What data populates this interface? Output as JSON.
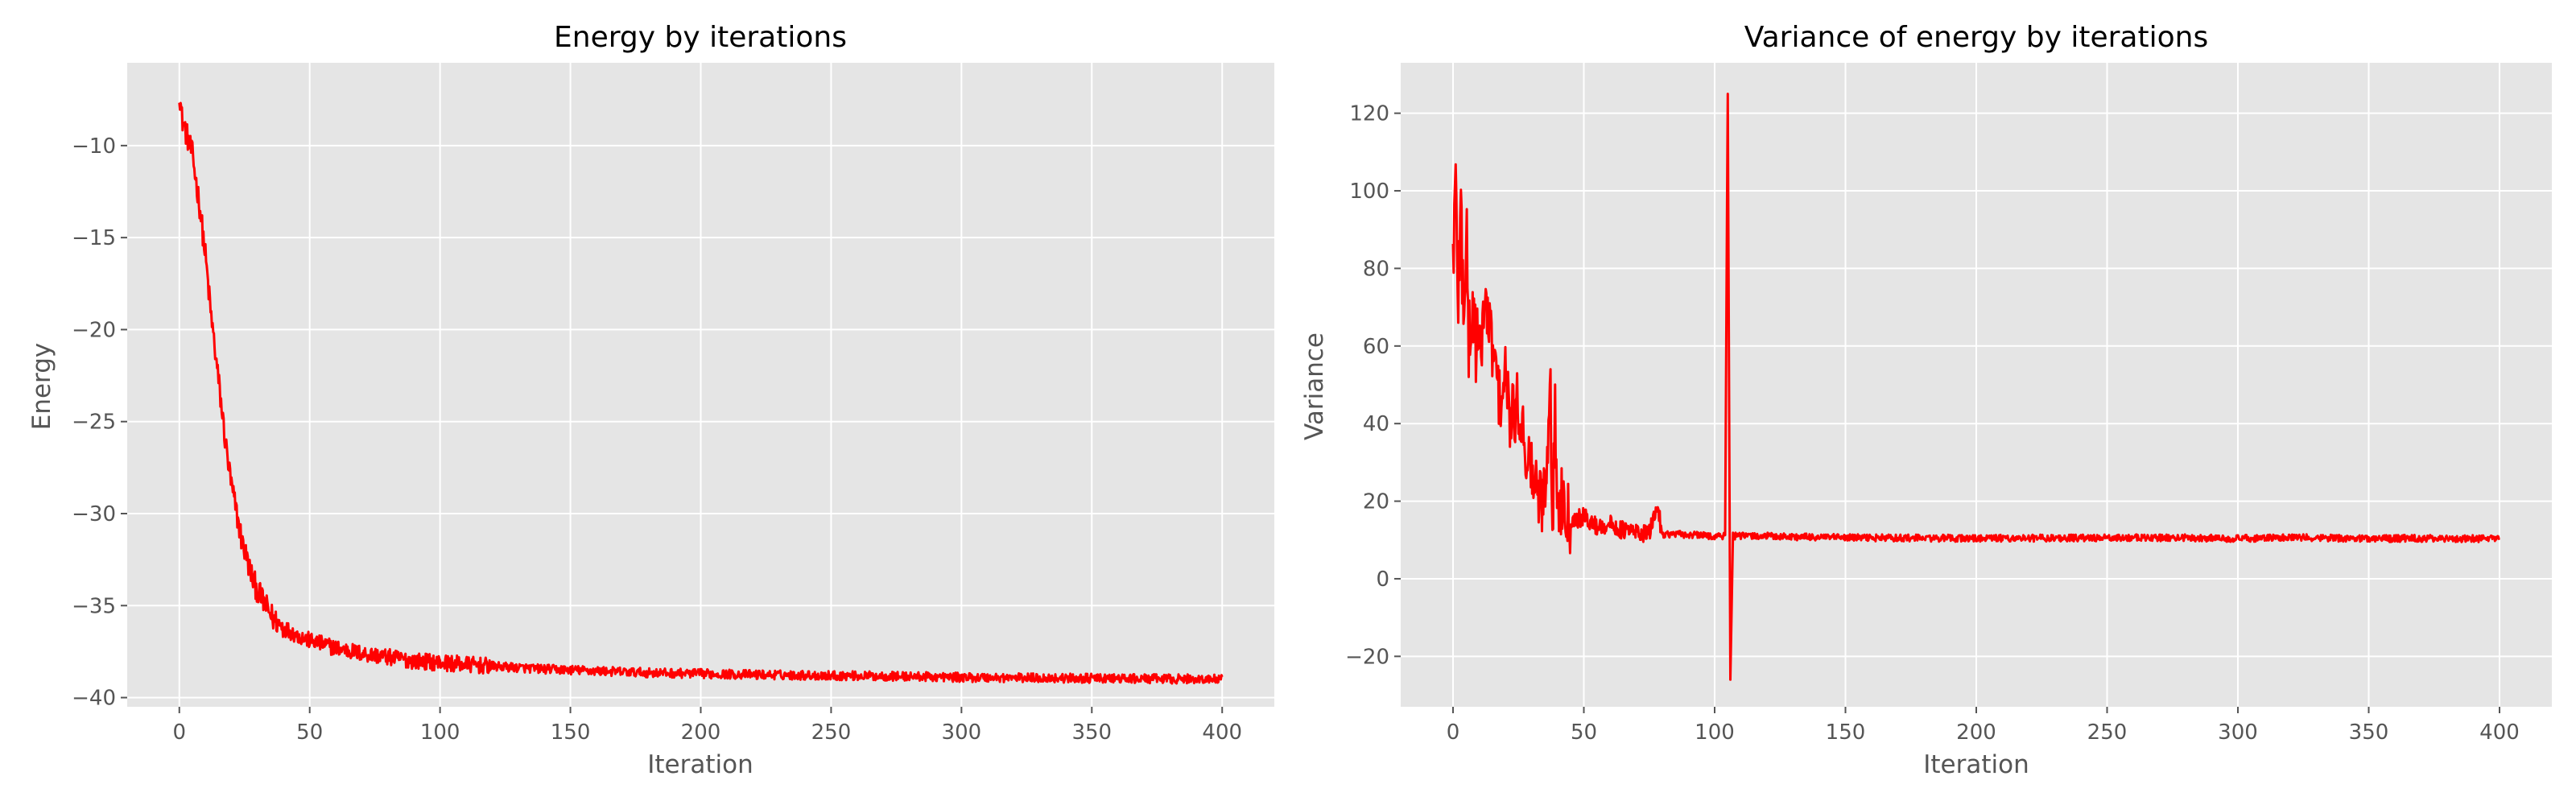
{
  "chart_data": [
    {
      "type": "line",
      "title": "Energy by iterations",
      "xlabel": "Iteration",
      "ylabel": "Energy",
      "xlim": [
        -20,
        420
      ],
      "ylim": [
        -40.5,
        -5.5
      ],
      "xticks": [
        0,
        50,
        100,
        150,
        200,
        250,
        300,
        350,
        400
      ],
      "xtick_labels": [
        "0",
        "50",
        "100",
        "150",
        "200",
        "250",
        "300",
        "350",
        "400"
      ],
      "yticks": [
        -40,
        -35,
        -30,
        -25,
        -20,
        -15,
        -10
      ],
      "ytick_labels": [
        "−40",
        "−35",
        "−30",
        "−25",
        "−20",
        "−15",
        "−10"
      ],
      "grid": true,
      "line_color": "#ff0000",
      "background": "#e5e5e5",
      "series": [
        {
          "x": [
            0,
            1,
            2,
            3,
            4,
            5,
            6,
            8,
            10,
            12,
            14,
            16,
            18,
            20,
            22,
            24,
            26,
            28,
            30,
            33,
            36,
            40,
            45,
            50,
            60,
            70,
            80,
            90,
            100,
            110,
            120,
            140,
            160,
            180,
            200,
            220,
            250,
            280,
            300,
            330,
            360,
            400
          ],
          "y": [
            -7.0,
            -8.5,
            -9.0,
            -9.5,
            -10.0,
            -10.5,
            -11.5,
            -13.5,
            -16.0,
            -19.0,
            -21.5,
            -24.0,
            -26.5,
            -28.5,
            -30.0,
            -31.5,
            -32.5,
            -33.5,
            -34.2,
            -35.0,
            -35.7,
            -36.2,
            -36.6,
            -36.9,
            -37.3,
            -37.6,
            -37.8,
            -38.0,
            -38.1,
            -38.2,
            -38.3,
            -38.45,
            -38.55,
            -38.65,
            -38.7,
            -38.75,
            -38.8,
            -38.85,
            -38.9,
            -38.93,
            -38.97,
            -39.0
          ]
        }
      ]
    },
    {
      "type": "line",
      "title": "Variance of energy by iterations",
      "xlabel": "Iteration",
      "ylabel": "Variance",
      "xlim": [
        -20,
        420
      ],
      "ylim": [
        -33,
        133
      ],
      "xticks": [
        0,
        50,
        100,
        150,
        200,
        250,
        300,
        350,
        400
      ],
      "xtick_labels": [
        "0",
        "50",
        "100",
        "150",
        "200",
        "250",
        "300",
        "350",
        "400"
      ],
      "yticks": [
        -20,
        0,
        20,
        40,
        60,
        80,
        100,
        120
      ],
      "ytick_labels": [
        "−20",
        "0",
        "20",
        "40",
        "60",
        "80",
        "100",
        "120"
      ],
      "grid": true,
      "line_color": "#ff0000",
      "background": "#e5e5e5",
      "series": [
        {
          "x": [
            0,
            1,
            2,
            3,
            4,
            5,
            6,
            8,
            10,
            12,
            15,
            18,
            20,
            22,
            25,
            28,
            30,
            32,
            34,
            36,
            37,
            38,
            39,
            40,
            42,
            45,
            50,
            55,
            60,
            65,
            70,
            75,
            78,
            80,
            85,
            90,
            95,
            100,
            104,
            105,
            106,
            107,
            110,
            120,
            130,
            150,
            175,
            200,
            225,
            250,
            275,
            300,
            325,
            350,
            375,
            400
          ],
          "y": [
            85,
            99,
            75,
            94,
            70,
            88,
            62,
            68,
            55,
            72,
            60,
            45,
            52,
            40,
            45,
            33,
            28,
            22,
            20,
            30,
            58,
            12,
            42,
            17,
            22,
            15,
            16,
            13.5,
            14,
            12.5,
            12.0,
            11.5,
            19,
            11.5,
            11.5,
            11.3,
            11.2,
            11.0,
            11.0,
            125,
            -26,
            11.0,
            11.0,
            11.0,
            10.8,
            10.6,
            10.5,
            10.4,
            10.5,
            10.5,
            10.6,
            10.4,
            10.6,
            10.4,
            10.4,
            10.3
          ]
        }
      ]
    }
  ]
}
